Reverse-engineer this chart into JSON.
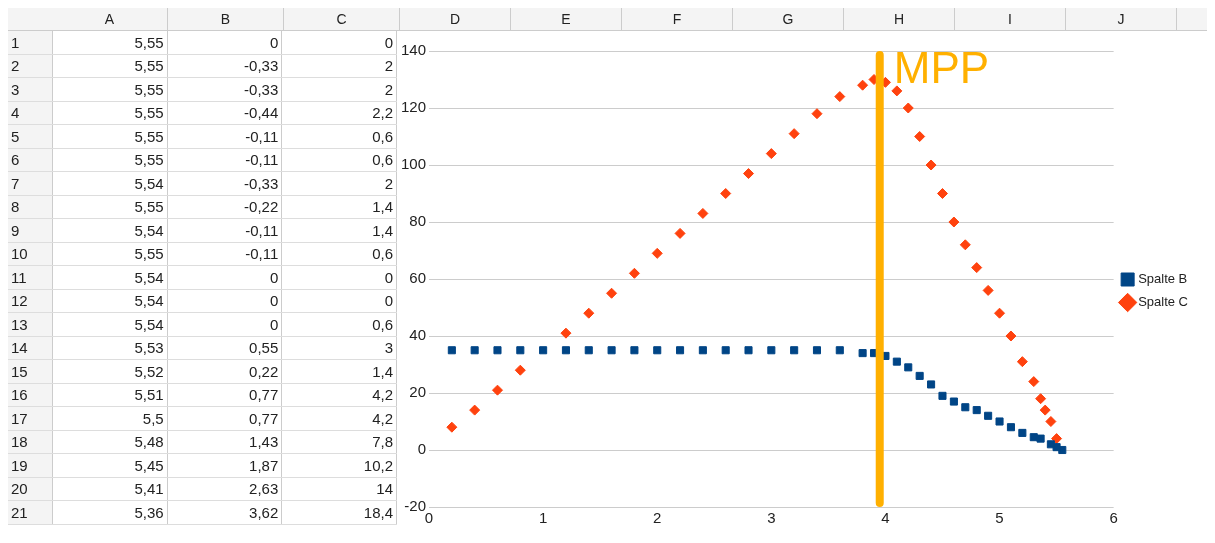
{
  "chart_data": [
    {
      "type": "heatmap",
      "categories": [
        "A",
        "B",
        "C",
        "D",
        "E",
        "F",
        "G",
        "H",
        "I",
        "J"
      ],
      "y_categories": [
        "1",
        "2",
        "3",
        "4",
        "5",
        "6",
        "7",
        "8",
        "9",
        "10",
        "11",
        "12",
        "13",
        "14",
        "15",
        "16",
        "17",
        "18",
        "19",
        "20",
        "21"
      ],
      "cells": [
        [
          5.55,
          0,
          0,
          null,
          null,
          null,
          null,
          null,
          null,
          null
        ],
        [
          5.55,
          -0.33,
          2,
          null,
          null,
          null,
          null,
          null,
          null,
          null
        ],
        [
          5.55,
          -0.33,
          2,
          null,
          null,
          null,
          null,
          null,
          null,
          null
        ],
        [
          5.55,
          -0.44,
          2.2,
          null,
          null,
          null,
          null,
          null,
          null,
          null
        ],
        [
          5.55,
          -0.11,
          0.6,
          null,
          null,
          null,
          null,
          null,
          null,
          null
        ],
        [
          5.55,
          -0.11,
          0.6,
          null,
          null,
          null,
          null,
          null,
          null,
          null
        ],
        [
          5.54,
          -0.33,
          2,
          null,
          null,
          null,
          null,
          null,
          null,
          null
        ],
        [
          5.55,
          -0.22,
          1.4,
          null,
          null,
          null,
          null,
          null,
          null,
          null
        ],
        [
          5.54,
          -0.11,
          1.4,
          null,
          null,
          null,
          null,
          null,
          null,
          null
        ],
        [
          5.55,
          -0.11,
          0.6,
          null,
          null,
          null,
          null,
          null,
          null,
          null
        ],
        [
          5.54,
          0,
          0,
          null,
          null,
          null,
          null,
          null,
          null,
          null
        ],
        [
          5.54,
          0,
          0,
          null,
          null,
          null,
          null,
          null,
          null,
          null
        ],
        [
          5.54,
          0,
          0.6,
          null,
          null,
          null,
          null,
          null,
          null,
          null
        ],
        [
          5.53,
          0.55,
          3,
          null,
          null,
          null,
          null,
          null,
          null,
          null
        ],
        [
          5.52,
          0.22,
          1.4,
          null,
          null,
          null,
          null,
          null,
          null,
          null
        ],
        [
          5.51,
          0.77,
          4.2,
          null,
          null,
          null,
          null,
          null,
          null,
          null
        ],
        [
          5.5,
          0.77,
          4.2,
          null,
          null,
          null,
          null,
          null,
          null,
          null
        ],
        [
          5.48,
          1.43,
          7.8,
          null,
          null,
          null,
          null,
          null,
          null,
          null
        ],
        [
          5.45,
          1.87,
          10.2,
          null,
          null,
          null,
          null,
          null,
          null,
          null
        ],
        [
          5.41,
          2.63,
          14,
          null,
          null,
          null,
          null,
          null,
          null,
          null
        ],
        [
          5.36,
          3.62,
          18.4,
          null,
          null,
          null,
          null,
          null,
          null,
          null
        ]
      ],
      "cell_labels": [
        [
          "5,55",
          "0",
          "0",
          null,
          null,
          null,
          null,
          null,
          null,
          null
        ],
        [
          "5,55",
          "-0,33",
          "2",
          null,
          null,
          null,
          null,
          null,
          null,
          null
        ],
        [
          "5,55",
          "-0,33",
          "2",
          null,
          null,
          null,
          null,
          null,
          null,
          null
        ],
        [
          "5,55",
          "-0,44",
          "2,2",
          null,
          null,
          null,
          null,
          null,
          null,
          null
        ],
        [
          "5,55",
          "-0,11",
          "0,6",
          null,
          null,
          null,
          null,
          null,
          null,
          null
        ],
        [
          "5,55",
          "-0,11",
          "0,6",
          null,
          null,
          null,
          null,
          null,
          null,
          null
        ],
        [
          "5,54",
          "-0,33",
          "2",
          null,
          null,
          null,
          null,
          null,
          null,
          null
        ],
        [
          "5,55",
          "-0,22",
          "1,4",
          null,
          null,
          null,
          null,
          null,
          null,
          null
        ],
        [
          "5,54",
          "-0,11",
          "1,4",
          null,
          null,
          null,
          null,
          null,
          null,
          null
        ],
        [
          "5,55",
          "-0,11",
          "0,6",
          null,
          null,
          null,
          null,
          null,
          null,
          null
        ],
        [
          "5,54",
          "0",
          "0",
          null,
          null,
          null,
          null,
          null,
          null,
          null
        ],
        [
          "5,54",
          "0",
          "0",
          null,
          null,
          null,
          null,
          null,
          null,
          null
        ],
        [
          "5,54",
          "0",
          "0,6",
          null,
          null,
          null,
          null,
          null,
          null,
          null
        ],
        [
          "5,53",
          "0,55",
          "3",
          null,
          null,
          null,
          null,
          null,
          null,
          null
        ],
        [
          "5,52",
          "0,22",
          "1,4",
          null,
          null,
          null,
          null,
          null,
          null,
          null
        ],
        [
          "5,51",
          "0,77",
          "4,2",
          null,
          null,
          null,
          null,
          null,
          null,
          null
        ],
        [
          "5,5",
          "0,77",
          "4,2",
          null,
          null,
          null,
          null,
          null,
          null,
          null
        ],
        [
          "5,48",
          "1,43",
          "7,8",
          null,
          null,
          null,
          null,
          null,
          null,
          null
        ],
        [
          "5,45",
          "1,87",
          "10,2",
          null,
          null,
          null,
          null,
          null,
          null,
          null
        ],
        [
          "5,41",
          "2,63",
          "14",
          null,
          null,
          null,
          null,
          null,
          null,
          null
        ],
        [
          "5,36",
          "3,62",
          "18,4",
          null,
          null,
          null,
          null,
          null,
          null,
          null
        ]
      ]
    },
    {
      "type": "scatter",
      "xlim": [
        0,
        6
      ],
      "xticks": [
        0,
        1,
        2,
        3,
        4,
        5,
        6
      ],
      "ylim": [
        -20,
        140
      ],
      "yticks": [
        -20,
        0,
        20,
        40,
        60,
        80,
        100,
        120,
        140
      ],
      "grid": "y",
      "legend": "right",
      "series": [
        {
          "name": "Spalte B",
          "color": "#004586",
          "marker": "square",
          "x": [
            5.55,
            5.5,
            5.45,
            5.36,
            5.3,
            5.2,
            5.1,
            5.0,
            4.9,
            4.8,
            4.7,
            4.6,
            4.5,
            4.4,
            4.3,
            4.2,
            4.1,
            4.0,
            3.9,
            3.8,
            3.6,
            3.4,
            3.2,
            3.0,
            2.8,
            2.6,
            2.4,
            2.2,
            2.0,
            1.8,
            1.6,
            1.4,
            1.2,
            1.0,
            0.8,
            0.6,
            0.4,
            0.2
          ],
          "values": [
            0,
            1,
            2,
            4,
            4.5,
            6,
            8,
            10,
            12,
            14,
            15,
            17,
            19,
            23,
            26,
            29,
            31,
            33,
            34,
            34,
            35,
            35,
            35,
            35,
            35,
            35,
            35,
            35,
            35,
            35,
            35,
            35,
            35,
            35,
            35,
            35,
            35,
            35
          ]
        },
        {
          "name": "Spalte C",
          "color": "#ff420e",
          "marker": "diamond",
          "x": [
            5.5,
            5.45,
            5.4,
            5.36,
            5.3,
            5.2,
            5.1,
            5.0,
            4.9,
            4.8,
            4.7,
            4.6,
            4.5,
            4.4,
            4.3,
            4.2,
            4.1,
            4.0,
            3.9,
            3.8,
            3.6,
            3.4,
            3.2,
            3.0,
            2.8,
            2.6,
            2.4,
            2.2,
            2.0,
            1.8,
            1.6,
            1.4,
            1.2,
            1.0,
            0.8,
            0.6,
            0.4,
            0.2
          ],
          "values": [
            4,
            10,
            14,
            18,
            24,
            31,
            40,
            48,
            56,
            64,
            72,
            80,
            90,
            100,
            110,
            120,
            126,
            129,
            130,
            128,
            124,
            118,
            111,
            104,
            97,
            90,
            83,
            76,
            69,
            62,
            55,
            48,
            41,
            null,
            28,
            21,
            14,
            8
          ]
        }
      ],
      "ref_lines": [
        {
          "axis": "x",
          "value": 3.95,
          "label": "MPP",
          "color": "#ffb000"
        }
      ]
    }
  ]
}
